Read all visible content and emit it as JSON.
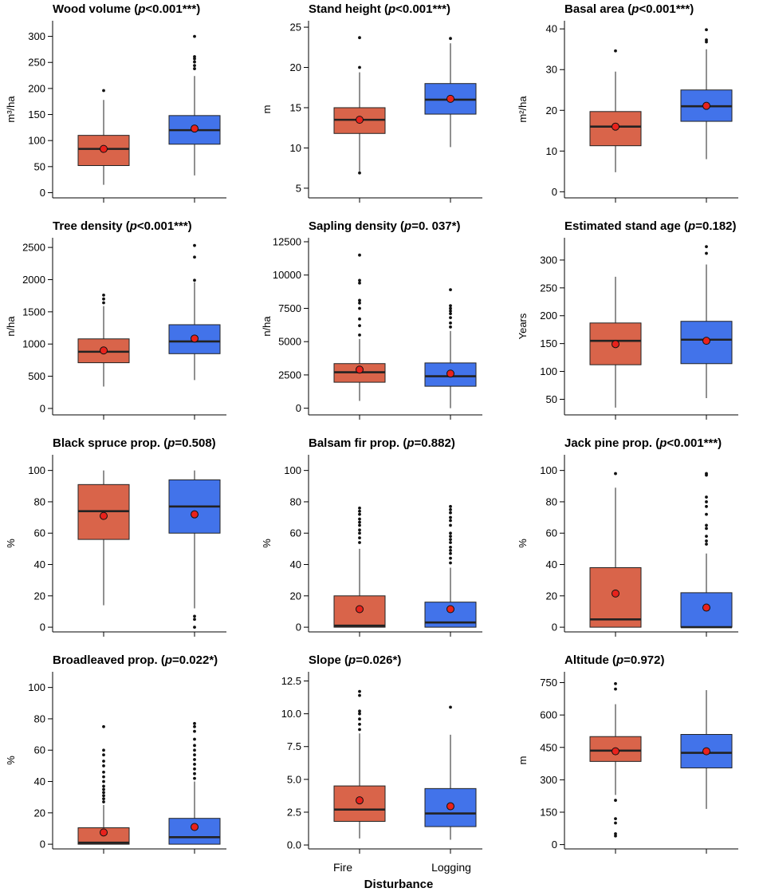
{
  "chart_data": [
    {
      "type": "box",
      "title_pre": "Wood volume (",
      "title_p": "p",
      "title_post": "<0.001***)",
      "ylabel": "m³/ha",
      "ylim": [
        -10,
        330
      ],
      "yticks": [
        0,
        50,
        100,
        150,
        200,
        250,
        300
      ],
      "boxes": [
        {
          "category": "Fire",
          "whisker_low": 15,
          "q1": 52,
          "median": 84,
          "q3": 110,
          "whisker_high": 178,
          "mean": 84,
          "outliers": [
            196
          ]
        },
        {
          "category": "Logging",
          "whisker_low": 33,
          "q1": 93,
          "median": 120,
          "q3": 148,
          "whisker_high": 224,
          "mean": 123,
          "outliers": [
            238,
            244,
            251,
            257,
            261,
            300
          ]
        }
      ]
    },
    {
      "type": "box",
      "title_pre": "Stand height (",
      "title_p": "p",
      "title_post": "<0.001***)",
      "ylabel": "m",
      "ylim": [
        3.8,
        25.8
      ],
      "yticks": [
        5,
        10,
        15,
        20,
        25
      ],
      "boxes": [
        {
          "category": "Fire",
          "whisker_low": 7.1,
          "q1": 11.8,
          "median": 13.5,
          "q3": 15.0,
          "whisker_high": 19.4,
          "mean": 13.5,
          "outliers": [
            6.9,
            20.0,
            23.7
          ]
        },
        {
          "category": "Logging",
          "whisker_low": 10.1,
          "q1": 14.2,
          "median": 16.0,
          "q3": 18.0,
          "whisker_high": 23.0,
          "mean": 16.1,
          "outliers": [
            23.6
          ]
        }
      ]
    },
    {
      "type": "box",
      "title_pre": "Basal area (",
      "title_p": "p",
      "title_post": "<0.001***)",
      "ylabel": "m²/ha",
      "ylim": [
        -1.5,
        42
      ],
      "yticks": [
        0,
        10,
        20,
        30,
        40
      ],
      "boxes": [
        {
          "category": "Fire",
          "whisker_low": 4.8,
          "q1": 11.3,
          "median": 16.0,
          "q3": 19.7,
          "whisker_high": 29.5,
          "mean": 16.0,
          "outliers": [
            34.6
          ]
        },
        {
          "category": "Logging",
          "whisker_low": 8.0,
          "q1": 17.3,
          "median": 21.0,
          "q3": 25.0,
          "whisker_high": 35.0,
          "mean": 21.1,
          "outliers": [
            36.8,
            37.3,
            39.8
          ]
        }
      ]
    },
    {
      "type": "box",
      "title_pre": "Tree density (",
      "title_p": "p",
      "title_post": "<0.001***)",
      "ylabel": "n/ha",
      "ylim": [
        -100,
        2650
      ],
      "yticks": [
        0,
        500,
        1000,
        1500,
        2000,
        2500
      ],
      "boxes": [
        {
          "category": "Fire",
          "whisker_low": 340,
          "q1": 710,
          "median": 880,
          "q3": 1080,
          "whisker_high": 1590,
          "mean": 900,
          "outliers": [
            1640,
            1700,
            1760
          ]
        },
        {
          "category": "Logging",
          "whisker_low": 440,
          "q1": 850,
          "median": 1040,
          "q3": 1300,
          "whisker_high": 1960,
          "mean": 1085,
          "outliers": [
            1990,
            2350,
            2530
          ]
        }
      ]
    },
    {
      "type": "box",
      "title_pre": "Sapling density (",
      "title_p": "p",
      "title_post": "=0. 037*)",
      "ylabel": "n/ha",
      "ylim": [
        -500,
        12800
      ],
      "yticks": [
        0,
        2500,
        5000,
        7500,
        10000,
        12500
      ],
      "boxes": [
        {
          "category": "Fire",
          "whisker_low": 550,
          "q1": 1950,
          "median": 2700,
          "q3": 3350,
          "whisker_high": 5200,
          "mean": 2900,
          "outliers": [
            5500,
            6200,
            6700,
            7500,
            7900,
            8100,
            9400,
            9600,
            11500
          ]
        },
        {
          "category": "Logging",
          "whisker_low": 0,
          "q1": 1650,
          "median": 2400,
          "q3": 3400,
          "whisker_high": 5800,
          "mean": 2600,
          "outliers": [
            6100,
            6400,
            6800,
            7100,
            7300,
            7500,
            7700,
            8900
          ]
        }
      ]
    },
    {
      "type": "box",
      "title_pre": "Estimated stand age (",
      "title_p": "p",
      "title_post": "=0.182)",
      "ylabel": "Years",
      "ylim": [
        22,
        340
      ],
      "yticks": [
        50,
        100,
        150,
        200,
        250,
        300
      ],
      "boxes": [
        {
          "category": "Fire",
          "whisker_low": 35,
          "q1": 112,
          "median": 155,
          "q3": 187,
          "whisker_high": 270,
          "mean": 149,
          "outliers": []
        },
        {
          "category": "Logging",
          "whisker_low": 52,
          "q1": 114,
          "median": 157,
          "q3": 190,
          "whisker_high": 292,
          "mean": 155,
          "outliers": [
            312,
            324
          ]
        }
      ]
    },
    {
      "type": "box",
      "title_pre": "Black spruce prop. (",
      "title_p": "p",
      "title_post": "=0.508)",
      "ylabel": "%",
      "ylim": [
        -3,
        110
      ],
      "yticks": [
        0,
        20,
        40,
        60,
        80,
        100
      ],
      "boxes": [
        {
          "category": "Fire",
          "whisker_low": 14,
          "q1": 56,
          "median": 74,
          "q3": 91,
          "whisker_high": 100,
          "mean": 71,
          "outliers": []
        },
        {
          "category": "Logging",
          "whisker_low": 12,
          "q1": 60,
          "median": 77,
          "q3": 94,
          "whisker_high": 100,
          "mean": 72,
          "outliers": [
            7,
            5,
            0
          ]
        }
      ]
    },
    {
      "type": "box",
      "title_pre": "Balsam fir prop. (",
      "title_p": "p",
      "title_post": "=0.882)",
      "ylabel": "%",
      "ylim": [
        -3,
        110
      ],
      "yticks": [
        0,
        20,
        40,
        60,
        80,
        100
      ],
      "boxes": [
        {
          "category": "Fire",
          "whisker_low": 0,
          "q1": 0,
          "median": 1,
          "q3": 20,
          "whisker_high": 50,
          "mean": 11.5,
          "outliers": [
            54,
            57,
            60,
            62,
            65,
            67,
            69,
            72,
            74,
            76
          ]
        },
        {
          "category": "Logging",
          "whisker_low": 0,
          "q1": 0,
          "median": 3,
          "q3": 16,
          "whisker_high": 38,
          "mean": 11.5,
          "outliers": [
            41,
            44,
            47,
            49,
            51,
            54,
            56,
            58,
            60,
            65,
            68,
            70,
            73,
            75,
            77
          ]
        }
      ]
    },
    {
      "type": "box",
      "title_pre": "Jack pine prop. (",
      "title_p": "p",
      "title_post": "<0.001***)",
      "ylabel": "%",
      "ylim": [
        -3,
        110
      ],
      "yticks": [
        0,
        20,
        40,
        60,
        80,
        100
      ],
      "boxes": [
        {
          "category": "Fire",
          "whisker_low": 0,
          "q1": 0,
          "median": 5,
          "q3": 38,
          "whisker_high": 89,
          "mean": 21.5,
          "outliers": [
            98
          ]
        },
        {
          "category": "Logging",
          "whisker_low": 0,
          "q1": 0,
          "median": 0,
          "q3": 22,
          "whisker_high": 47,
          "mean": 12.5,
          "outliers": [
            53,
            55,
            58,
            63,
            65,
            72,
            77,
            80,
            83,
            97,
            98
          ]
        }
      ]
    },
    {
      "type": "box",
      "title_pre": "Broadleaved prop. (",
      "title_p": "p",
      "title_post": "=0.022*)",
      "ylabel": "%",
      "ylim": [
        -3,
        110
      ],
      "yticks": [
        0,
        20,
        40,
        60,
        80,
        100
      ],
      "boxes": [
        {
          "category": "Fire",
          "whisker_low": 0,
          "q1": 0,
          "median": 1,
          "q3": 10.5,
          "whisker_high": 25,
          "mean": 7.5,
          "outliers": [
            27,
            29,
            31,
            33,
            35,
            37,
            40,
            43,
            46,
            50,
            53,
            57,
            60,
            75
          ]
        },
        {
          "category": "Logging",
          "whisker_low": 0,
          "q1": 0,
          "median": 4.5,
          "q3": 16.5,
          "whisker_high": 40,
          "mean": 11,
          "outliers": [
            42,
            45,
            48,
            51,
            54,
            57,
            60,
            63,
            67,
            72,
            75,
            77
          ]
        }
      ]
    },
    {
      "type": "box",
      "title_pre": "Slope (",
      "title_p": "p",
      "title_post": "=0.026*)",
      "ylabel": "",
      "ylim": [
        -0.3,
        13.2
      ],
      "yticks": [
        0,
        2.5,
        5,
        7.5,
        10,
        12.5
      ],
      "tick_labels": [
        "0.0",
        "2.5",
        "5.0",
        "7.5",
        "10.0",
        "12.5"
      ],
      "boxes": [
        {
          "category": "Fire",
          "whisker_low": 0.5,
          "q1": 1.8,
          "median": 2.7,
          "q3": 4.5,
          "whisker_high": 8.5,
          "mean": 3.4,
          "outliers": [
            8.8,
            9.2,
            9.6,
            10.0,
            10.2,
            11.4,
            11.7
          ]
        },
        {
          "category": "Logging",
          "whisker_low": 0.4,
          "q1": 1.4,
          "median": 2.4,
          "q3": 4.3,
          "whisker_high": 8.4,
          "mean": 2.95,
          "outliers": [
            10.5
          ]
        }
      ]
    },
    {
      "type": "box",
      "title_pre": "Altitude (",
      "title_p": "p",
      "title_post": "=0.972)",
      "ylabel": "m",
      "ylim": [
        -20,
        800
      ],
      "yticks": [
        0,
        150,
        300,
        450,
        600,
        750
      ],
      "boxes": [
        {
          "category": "Fire",
          "whisker_low": 230,
          "q1": 385,
          "median": 435,
          "q3": 500,
          "whisker_high": 650,
          "mean": 432,
          "outliers": [
            205,
            120,
            100,
            50,
            40,
            720,
            745
          ]
        },
        {
          "category": "Logging",
          "whisker_low": 165,
          "q1": 355,
          "median": 425,
          "q3": 510,
          "whisker_high": 715,
          "mean": 432,
          "outliers": []
        }
      ]
    }
  ],
  "categories": [
    "Fire",
    "Logging"
  ],
  "x_axis_title": "Disturbance",
  "colors": {
    "fire": "#d9644a",
    "logging": "#4273ea",
    "mean": "#e8221c",
    "line": "#222222"
  }
}
